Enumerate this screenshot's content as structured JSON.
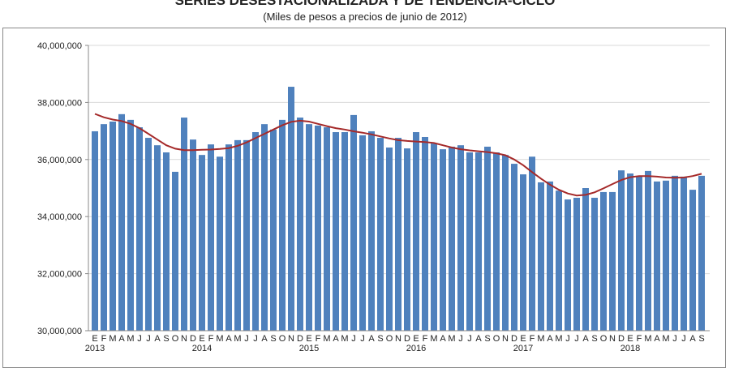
{
  "chart_data": {
    "type": "bar",
    "title": "SERIES DESESTACIONALIZADA Y DE TENDENCIA-CICLO",
    "subtitle": "(Miles de pesos a precios de junio de 2012)",
    "xlabel": "",
    "ylabel": "",
    "ylim": [
      30000000,
      40000000
    ],
    "yticks": [
      "30,000,000",
      "32,000,000",
      "34,000,000",
      "36,000,000",
      "38,000,000",
      "40,000,000"
    ],
    "month_labels": [
      "E",
      "F",
      "M",
      "A",
      "M",
      "J",
      "J",
      "A",
      "S",
      "O",
      "N",
      "D"
    ],
    "years": [
      "2013",
      "2014",
      "2015",
      "2016",
      "2017",
      "2018"
    ],
    "grid": true,
    "legend": "none",
    "colors": {
      "bars": "#4f81bd",
      "trend": "#a52a2a"
    },
    "series": [
      {
        "type": "bar",
        "values": [
          36990000,
          37240000,
          37330000,
          37590000,
          37390000,
          37130000,
          36760000,
          36500000,
          36250000,
          35570000,
          37470000,
          36700000,
          36160000,
          36530000,
          36100000,
          36530000,
          36680000,
          36680000,
          36960000,
          37240000,
          37050000,
          37390000,
          38550000,
          37470000,
          37240000,
          37190000,
          37130000,
          36960000,
          36960000,
          37560000,
          36850000,
          36990000,
          36760000,
          36420000,
          36760000,
          36390000,
          36960000,
          36790000,
          36560000,
          36360000,
          36450000,
          36500000,
          36250000,
          36250000,
          36450000,
          36250000,
          36160000,
          35850000,
          35480000,
          36100000,
          35200000,
          35230000,
          34910000,
          34600000,
          34660000,
          35000000,
          34660000,
          34860000,
          34860000,
          35620000,
          35510000,
          35400000,
          35600000,
          35230000,
          35260000,
          35430000,
          35400000,
          34940000,
          35430000
        ]
      },
      {
        "type": "line",
        "values": [
          37600000,
          37480000,
          37400000,
          37350000,
          37250000,
          37100000,
          36900000,
          36700000,
          36500000,
          36380000,
          36330000,
          36330000,
          36340000,
          36350000,
          36370000,
          36400000,
          36480000,
          36600000,
          36750000,
          36900000,
          37050000,
          37200000,
          37320000,
          37360000,
          37330000,
          37250000,
          37170000,
          37100000,
          37050000,
          36990000,
          36940000,
          36880000,
          36810000,
          36740000,
          36680000,
          36650000,
          36630000,
          36610000,
          36580000,
          36500000,
          36420000,
          36360000,
          36320000,
          36290000,
          36260000,
          36220000,
          36150000,
          36000000,
          35800000,
          35560000,
          35330000,
          35120000,
          34940000,
          34810000,
          34740000,
          34760000,
          34850000,
          34990000,
          35140000,
          35280000,
          35380000,
          35420000,
          35420000,
          35400000,
          35370000,
          35360000,
          35370000,
          35420000,
          35500000
        ]
      }
    ]
  }
}
